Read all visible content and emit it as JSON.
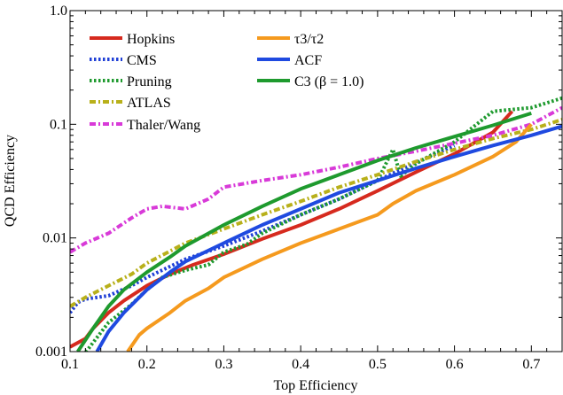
{
  "chart_data": {
    "type": "line",
    "xlabel": "Top Efficiency",
    "ylabel": "QCD Efficiency",
    "xlim": [
      0.1,
      0.74
    ],
    "ylim": [
      0.001,
      1.0
    ],
    "y_scale": "log",
    "x_ticks": [
      0.1,
      0.2,
      0.3,
      0.4,
      0.5,
      0.6,
      0.7
    ],
    "x_tick_labels": [
      "0.1",
      "0.2",
      "0.3",
      "0.4",
      "0.5",
      "0.6",
      "0.7"
    ],
    "y_ticks": [
      0.001,
      0.01,
      0.1,
      1.0
    ],
    "y_tick_labels": [
      "0.001",
      "0.01",
      "0.1",
      "1.0"
    ],
    "grid": false,
    "legend": "top-left, two columns",
    "series": [
      {
        "name": "Hopkins",
        "color": "#d62a1e",
        "dash": "solid",
        "col": 0,
        "x": [
          0.1,
          0.12,
          0.13,
          0.15,
          0.17,
          0.2,
          0.23,
          0.26,
          0.3,
          0.35,
          0.4,
          0.45,
          0.5,
          0.55,
          0.6,
          0.65,
          0.675
        ],
        "y": [
          0.0011,
          0.0013,
          0.0016,
          0.0022,
          0.0028,
          0.0038,
          0.0048,
          0.0058,
          0.0072,
          0.0098,
          0.013,
          0.018,
          0.026,
          0.038,
          0.055,
          0.085,
          0.13
        ]
      },
      {
        "name": "CMS",
        "color": "#1f3fd6",
        "dash": "dotted",
        "col": 0,
        "x": [
          0.1,
          0.11,
          0.12,
          0.15,
          0.18,
          0.2,
          0.25,
          0.3,
          0.35,
          0.4,
          0.45,
          0.5,
          0.55,
          0.6
        ],
        "y": [
          0.0022,
          0.0027,
          0.0029,
          0.0031,
          0.0038,
          0.0045,
          0.0065,
          0.0085,
          0.0115,
          0.016,
          0.022,
          0.032,
          0.046,
          0.065
        ]
      },
      {
        "name": "Pruning",
        "color": "#1e9a2e",
        "dash": "dotted",
        "col": 0,
        "x": [
          0.11,
          0.13,
          0.15,
          0.18,
          0.2,
          0.22,
          0.25,
          0.28,
          0.3,
          0.33,
          0.35,
          0.4,
          0.45,
          0.5,
          0.52,
          0.53,
          0.55,
          0.6,
          0.65,
          0.7,
          0.74
        ],
        "y": [
          0.0008,
          0.0012,
          0.0018,
          0.0026,
          0.0035,
          0.0045,
          0.0052,
          0.0058,
          0.0075,
          0.0088,
          0.011,
          0.016,
          0.022,
          0.032,
          0.06,
          0.035,
          0.045,
          0.07,
          0.13,
          0.14,
          0.17
        ]
      },
      {
        "name": "ATLAS",
        "color": "#b8b01a",
        "dash": "dashdot",
        "col": 0,
        "x": [
          0.1,
          0.12,
          0.15,
          0.18,
          0.2,
          0.25,
          0.3,
          0.35,
          0.4,
          0.45,
          0.5,
          0.55,
          0.6,
          0.65,
          0.7,
          0.74
        ],
        "y": [
          0.0025,
          0.003,
          0.0038,
          0.0048,
          0.006,
          0.009,
          0.012,
          0.016,
          0.021,
          0.028,
          0.036,
          0.047,
          0.06,
          0.075,
          0.09,
          0.11
        ]
      },
      {
        "name": "Thaler/Wang",
        "color": "#d83ad8",
        "dash": "dashdot",
        "col": 0,
        "x": [
          0.1,
          0.12,
          0.15,
          0.18,
          0.2,
          0.22,
          0.25,
          0.28,
          0.3,
          0.35,
          0.4,
          0.45,
          0.5,
          0.55,
          0.6,
          0.65,
          0.7,
          0.74
        ],
        "y": [
          0.0075,
          0.009,
          0.011,
          0.015,
          0.018,
          0.019,
          0.018,
          0.022,
          0.028,
          0.032,
          0.036,
          0.042,
          0.05,
          0.058,
          0.068,
          0.08,
          0.1,
          0.14
        ]
      },
      {
        "name": "τ3/τ2",
        "color": "#f59a1e",
        "dash": "solid",
        "col": 1,
        "x": [
          0.175,
          0.19,
          0.2,
          0.23,
          0.25,
          0.28,
          0.3,
          0.35,
          0.4,
          0.45,
          0.5,
          0.52,
          0.55,
          0.6,
          0.65,
          0.68,
          0.7
        ],
        "y": [
          0.001,
          0.0014,
          0.0016,
          0.0022,
          0.0028,
          0.0036,
          0.0045,
          0.0065,
          0.009,
          0.012,
          0.016,
          0.02,
          0.026,
          0.036,
          0.052,
          0.07,
          0.1
        ]
      },
      {
        "name": "ACF",
        "color": "#1f4ae0",
        "dash": "solid",
        "col": 1,
        "x": [
          0.135,
          0.15,
          0.17,
          0.2,
          0.23,
          0.25,
          0.3,
          0.35,
          0.4,
          0.45,
          0.5,
          0.55,
          0.6,
          0.65,
          0.7,
          0.74
        ],
        "y": [
          0.001,
          0.0015,
          0.0022,
          0.0035,
          0.005,
          0.0062,
          0.009,
          0.013,
          0.018,
          0.025,
          0.032,
          0.041,
          0.052,
          0.065,
          0.08,
          0.096
        ]
      },
      {
        "name": "C3 (β = 1.0)",
        "color": "#1e9a2e",
        "dash": "solid",
        "col": 1,
        "x": [
          0.11,
          0.13,
          0.15,
          0.17,
          0.2,
          0.23,
          0.25,
          0.3,
          0.35,
          0.4,
          0.45,
          0.5,
          0.55,
          0.6,
          0.65,
          0.7
        ],
        "y": [
          0.001,
          0.0016,
          0.0025,
          0.0035,
          0.005,
          0.0068,
          0.0085,
          0.013,
          0.019,
          0.027,
          0.036,
          0.048,
          0.062,
          0.078,
          0.098,
          0.125
        ]
      }
    ]
  }
}
